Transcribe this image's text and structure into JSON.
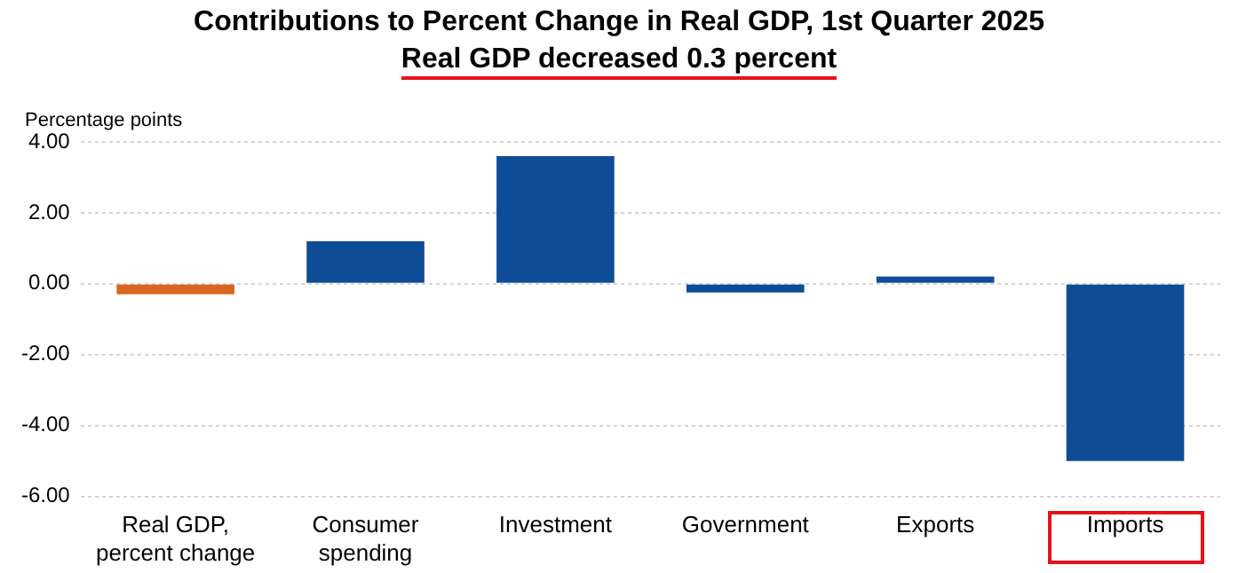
{
  "chart_data": {
    "type": "bar",
    "title": "Contributions to Percent Change in Real GDP, 1st Quarter 2025",
    "subtitle": "Real GDP decreased 0.3 percent",
    "ylabel": "Percentage points",
    "categories": [
      "Real GDP, percent change",
      "Consumer spending",
      "Investment",
      "Government",
      "Exports",
      "Imports"
    ],
    "values": [
      -0.3,
      1.2,
      3.6,
      -0.25,
      0.2,
      -5.0
    ],
    "colors": [
      "#d9661f",
      "#0f4c97",
      "#0f4c97",
      "#0f4c97",
      "#0f4c97",
      "#0f4c97"
    ],
    "ylim": [
      -6,
      4
    ],
    "yticks": [
      {
        "value": -6,
        "label": "-6.00"
      },
      {
        "value": -4,
        "label": "-4.00"
      },
      {
        "value": -2,
        "label": "-2.00"
      },
      {
        "value": 0,
        "label": "0.00"
      },
      {
        "value": 2,
        "label": "2.00"
      },
      {
        "value": 4,
        "label": "4.00"
      }
    ],
    "grid": "y"
  }
}
